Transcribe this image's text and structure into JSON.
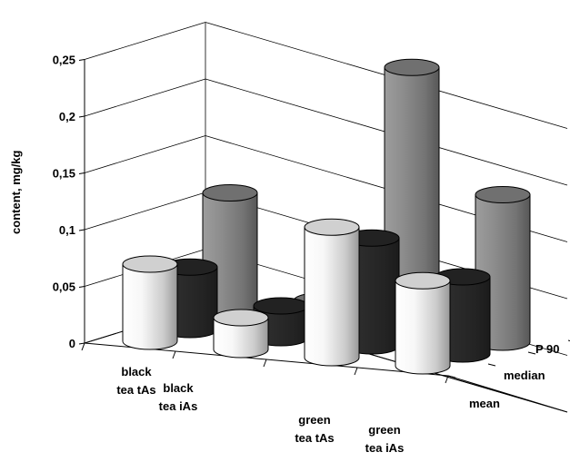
{
  "chart_data": {
    "type": "bar",
    "variant": "3d-column",
    "ylabel": "content, mg/kg",
    "ylim": [
      0,
      0.25
    ],
    "yticks": [
      "0",
      "0,05",
      "0,1",
      "0,15",
      "0,2",
      "0,25"
    ],
    "categories": [
      [
        "black",
        "tea tAs"
      ],
      [
        "black",
        "tea iAs"
      ],
      [
        "green",
        "tea tAs"
      ],
      [
        "green",
        "tea iAs"
      ]
    ],
    "series": [
      {
        "name": "mean",
        "color": "#f2f2f2",
        "values": [
          0.068,
          0.028,
          0.115,
          0.075
        ]
      },
      {
        "name": "median",
        "color": "#2b2b2b",
        "values": [
          0.055,
          0.028,
          0.095,
          0.068
        ]
      },
      {
        "name": "P 90",
        "color": "#8c8c8c",
        "values": [
          0.11,
          0.022,
          0.235,
          0.13
        ]
      }
    ],
    "grid": true,
    "legend": "depth-axis-right"
  }
}
